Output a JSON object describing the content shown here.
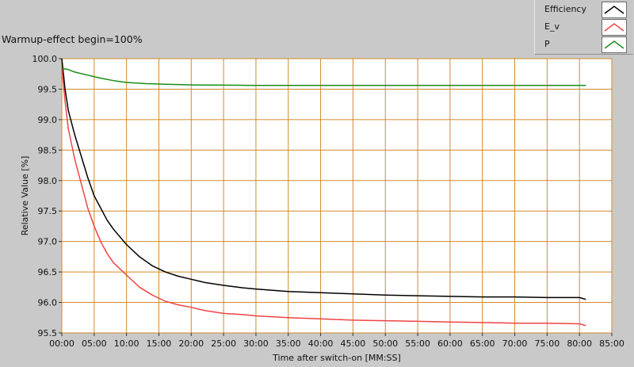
{
  "chart_data": {
    "type": "line",
    "title": "Warmup-effect begin=100%",
    "xlabel": "Time after switch-on [MM:SS]",
    "ylabel": "Relative Value [%]",
    "xlim": [
      0,
      85
    ],
    "ylim": [
      95.5,
      100.0
    ],
    "x_ticks": [
      0,
      5,
      10,
      15,
      20,
      25,
      30,
      35,
      40,
      45,
      50,
      55,
      60,
      65,
      70,
      75,
      80,
      85
    ],
    "x_tick_labels": [
      "00:00",
      "05:00",
      "10:00",
      "15:00",
      "20:00",
      "25:00",
      "30:00",
      "35:00",
      "40:00",
      "45:00",
      "50:00",
      "55:00",
      "60:00",
      "65:00",
      "70:00",
      "75:00",
      "80:00",
      "85:00"
    ],
    "y_ticks": [
      95.5,
      96.0,
      96.5,
      97.0,
      97.5,
      98.0,
      98.5,
      99.0,
      99.5,
      100.0
    ],
    "y_tick_labels": [
      "95.5",
      "96.0",
      "96.5",
      "97.0",
      "97.5",
      "98.0",
      "98.5",
      "99.0",
      "99.5",
      "100.0"
    ],
    "grid": true,
    "legend_position": "top-right",
    "x_unit": "minutes",
    "series": [
      {
        "name": "Efficiency",
        "color": "#000000",
        "x": [
          0,
          0.5,
          1,
          2,
          3,
          4,
          5,
          6,
          7,
          8,
          10,
          12,
          14,
          16,
          18,
          20,
          22,
          25,
          28,
          30,
          35,
          40,
          45,
          50,
          55,
          60,
          65,
          70,
          75,
          80,
          81
        ],
        "values": [
          100.0,
          99.5,
          99.15,
          98.75,
          98.4,
          98.05,
          97.75,
          97.55,
          97.35,
          97.2,
          96.95,
          96.75,
          96.6,
          96.5,
          96.43,
          96.38,
          96.33,
          96.28,
          96.24,
          96.22,
          96.18,
          96.16,
          96.14,
          96.12,
          96.11,
          96.1,
          96.09,
          96.09,
          96.08,
          96.08,
          96.05
        ]
      },
      {
        "name": "E_v",
        "color": "#ee4444",
        "x": [
          0,
          0.5,
          1,
          2,
          3,
          4,
          5,
          6,
          7,
          8,
          10,
          12,
          14,
          16,
          18,
          20,
          22,
          25,
          28,
          30,
          35,
          40,
          45,
          50,
          55,
          60,
          65,
          70,
          75,
          80,
          81
        ],
        "values": [
          99.85,
          99.3,
          98.85,
          98.35,
          97.95,
          97.55,
          97.25,
          97.0,
          96.8,
          96.65,
          96.45,
          96.25,
          96.12,
          96.02,
          95.96,
          95.92,
          95.87,
          95.82,
          95.8,
          95.78,
          95.75,
          95.73,
          95.71,
          95.7,
          95.69,
          95.68,
          95.67,
          95.66,
          95.66,
          95.65,
          95.62
        ]
      },
      {
        "name": "P",
        "color": "#1a8c1a",
        "x": [
          0,
          1,
          2,
          4,
          6,
          8,
          10,
          13,
          16,
          20,
          25,
          30,
          40,
          50,
          60,
          70,
          80,
          81
        ],
        "values": [
          99.84,
          99.82,
          99.78,
          99.73,
          99.68,
          99.64,
          99.61,
          99.59,
          99.58,
          99.57,
          99.565,
          99.56,
          99.56,
          99.56,
          99.56,
          99.56,
          99.56,
          99.56
        ]
      }
    ]
  }
}
